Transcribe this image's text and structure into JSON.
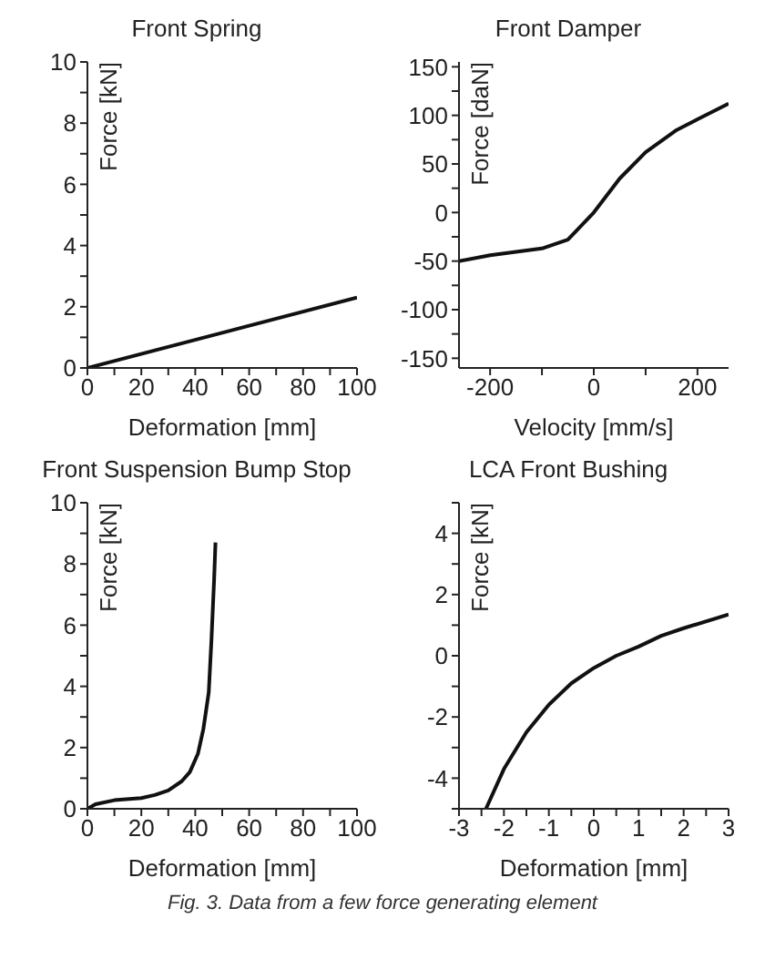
{
  "chart_data": [
    {
      "type": "line",
      "title": "Front Spring",
      "xlabel": "Deformation [mm]",
      "ylabel": "Force [kN]",
      "x": [
        0,
        100
      ],
      "values": [
        0,
        2.3
      ],
      "color": "#111111",
      "xlim": [
        0,
        100
      ],
      "xticks": [
        0,
        {
          "value": 10,
          "label": null
        },
        20,
        {
          "value": 30,
          "label": null
        },
        40,
        {
          "value": 50,
          "label": null
        },
        60,
        {
          "value": 70,
          "label": null
        },
        80,
        {
          "value": 90,
          "label": null
        },
        100
      ],
      "ylim": [
        0,
        10
      ],
      "yticks": [
        0,
        {
          "value": 1,
          "label": null
        },
        2,
        {
          "value": 3,
          "label": null
        },
        4,
        {
          "value": 5,
          "label": null
        },
        6,
        {
          "value": 7,
          "label": null
        },
        8,
        {
          "value": 9,
          "label": null
        },
        10
      ],
      "grid": false,
      "marker": "none",
      "line_style": "solid"
    },
    {
      "type": "line",
      "title": "Front Damper",
      "xlabel": "Velocity [mm/s]",
      "ylabel": "Force [daN]",
      "x": [
        -260,
        -200,
        -100,
        -50,
        0,
        50,
        100,
        160,
        200,
        260
      ],
      "values": [
        -50,
        -44,
        -37,
        -28,
        0,
        35,
        62,
        85,
        96,
        112
      ],
      "color": "#111111",
      "xlim": [
        -260,
        260
      ],
      "xticks": [
        -200,
        {
          "value": -100,
          "label": null
        },
        0,
        {
          "value": 100,
          "label": null
        },
        200
      ],
      "ylim": [
        -160,
        155
      ],
      "yticks": [
        -150,
        {
          "value": -125,
          "label": null
        },
        -100,
        {
          "value": -75,
          "label": null
        },
        -50,
        {
          "value": -25,
          "label": null
        },
        0,
        {
          "value": 25,
          "label": null
        },
        50,
        {
          "value": 75,
          "label": null
        },
        100,
        {
          "value": 125,
          "label": null
        },
        150
      ],
      "grid": false,
      "marker": "none",
      "line_style": "solid"
    },
    {
      "type": "line",
      "title": "Front Suspension Bump Stop",
      "xlabel": "Deformation [mm]",
      "ylabel": "Force [kN]",
      "x": [
        0,
        3,
        10,
        20,
        25,
        30,
        35,
        38,
        41,
        43,
        45,
        46,
        47,
        47.5
      ],
      "values": [
        0,
        0.15,
        0.28,
        0.35,
        0.45,
        0.6,
        0.9,
        1.2,
        1.8,
        2.6,
        3.8,
        5.5,
        7.5,
        8.7
      ],
      "color": "#111111",
      "xlim": [
        0,
        100
      ],
      "xticks": [
        0,
        {
          "value": 10,
          "label": null
        },
        20,
        {
          "value": 30,
          "label": null
        },
        40,
        {
          "value": 50,
          "label": null
        },
        60,
        {
          "value": 70,
          "label": null
        },
        80,
        {
          "value": 90,
          "label": null
        },
        100
      ],
      "ylim": [
        0,
        10
      ],
      "yticks": [
        0,
        {
          "value": 1,
          "label": null
        },
        2,
        {
          "value": 3,
          "label": null
        },
        4,
        {
          "value": 5,
          "label": null
        },
        6,
        {
          "value": 7,
          "label": null
        },
        8,
        {
          "value": 9,
          "label": null
        },
        10
      ],
      "grid": false,
      "marker": "none",
      "line_style": "solid"
    },
    {
      "type": "line",
      "title": "LCA Front Bushing",
      "xlabel": "Deformation [mm]",
      "ylabel": "Force [kN]",
      "x": [
        -2.4,
        -2,
        -1.5,
        -1,
        -0.5,
        0,
        0.5,
        1,
        1.5,
        2,
        3
      ],
      "values": [
        -5,
        -3.7,
        -2.5,
        -1.6,
        -0.9,
        -0.4,
        0,
        0.3,
        0.65,
        0.9,
        1.35
      ],
      "color": "#111111",
      "xlim": [
        -3,
        3
      ],
      "xticks": [
        -3,
        {
          "value": -2.5,
          "label": null
        },
        -2,
        {
          "value": -1.5,
          "label": null
        },
        -1,
        {
          "value": -0.5,
          "label": null
        },
        0,
        {
          "value": 0.5,
          "label": null
        },
        1,
        {
          "value": 1.5,
          "label": null
        },
        2,
        {
          "value": 2.5,
          "label": null
        },
        3
      ],
      "ylim": [
        -5,
        5
      ],
      "yticks": [
        {
          "value": -5,
          "label": null
        },
        -4,
        {
          "value": -3,
          "label": null
        },
        -2,
        {
          "value": -1,
          "label": null
        },
        0,
        {
          "value": 1,
          "label": null
        },
        2,
        {
          "value": 3,
          "label": null
        },
        4,
        {
          "value": 5,
          "label": null
        }
      ],
      "grid": false,
      "marker": "none",
      "line_style": "solid",
      "annotations": [
        "Fig. 3. Data from a few force generating element"
      ]
    }
  ]
}
